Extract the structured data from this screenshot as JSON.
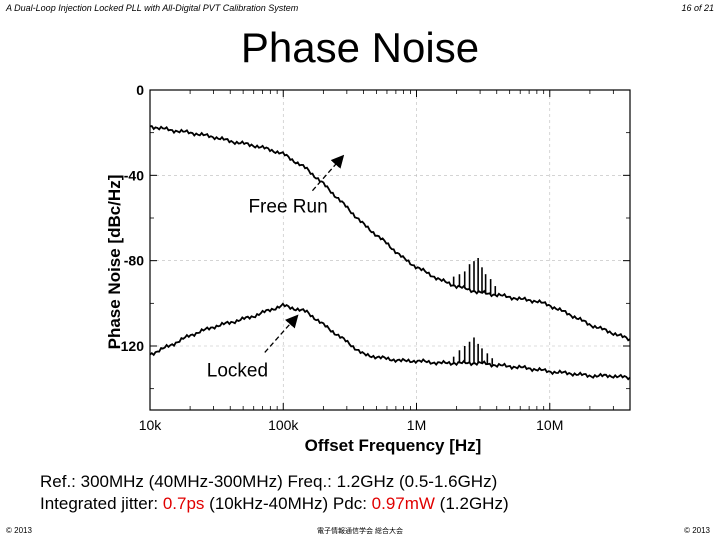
{
  "header": {
    "presentation_title": "A Dual-Loop Injection Locked PLL with All-Digital PVT Calibration System",
    "page_indicator": "16 of 21"
  },
  "slide_title": "Phase Noise",
  "chart_data": {
    "type": "line",
    "xlabel": "Offset Frequency [Hz]",
    "ylabel": "Phase Noise [dBc/Hz]",
    "x_scale": "log",
    "xlim": [
      10000,
      40000000
    ],
    "ylim": [
      -150,
      0
    ],
    "x_ticks": [
      {
        "value": 10000,
        "label": "10k"
      },
      {
        "value": 100000,
        "label": "100k"
      },
      {
        "value": 1000000,
        "label": "1M"
      },
      {
        "value": 10000000,
        "label": "10M"
      }
    ],
    "y_ticks": [
      {
        "value": 0,
        "label": "0"
      },
      {
        "value": -40,
        "label": "-40"
      },
      {
        "value": -80,
        "label": "-80"
      },
      {
        "value": -120,
        "label": "-120"
      }
    ],
    "series": [
      {
        "name": "Free Run",
        "x": [
          10000,
          15000,
          20000,
          30000,
          40000,
          60000,
          80000,
          100000,
          150000,
          200000,
          300000,
          400000,
          600000,
          800000,
          1000000,
          1500000,
          2000000,
          3000000,
          4000000,
          6000000,
          8000000,
          10000000,
          15000000,
          20000000,
          30000000,
          40000000
        ],
        "y": [
          -17,
          -19,
          -20,
          -22,
          -24,
          -26,
          -28,
          -30,
          -37,
          -44,
          -55,
          -63,
          -72,
          -79,
          -83,
          -89,
          -92,
          -95,
          -96,
          -98,
          -99,
          -101,
          -106,
          -110,
          -114,
          -117
        ]
      },
      {
        "name": "Locked",
        "x": [
          10000,
          15000,
          20000,
          30000,
          40000,
          60000,
          80000,
          100000,
          150000,
          200000,
          300000,
          400000,
          600000,
          800000,
          1000000,
          1500000,
          2000000,
          3000000,
          4000000,
          6000000,
          8000000,
          10000000,
          15000000,
          20000000,
          30000000,
          40000000
        ],
        "y": [
          -124,
          -119,
          -115,
          -111,
          -109,
          -106,
          -103,
          -101,
          -104,
          -110,
          -118,
          -124,
          -126,
          -127,
          -127,
          -128,
          -128,
          -128,
          -129,
          -130,
          -131,
          -132,
          -133,
          -134,
          -134,
          -135
        ]
      }
    ],
    "spurs": [
      {
        "series": "Free Run",
        "x": [
          1900000,
          2100000,
          2300000,
          2500000,
          2700000,
          2900000,
          3100000,
          3300000,
          3600000,
          3900000
        ],
        "depth": [
          4,
          6,
          8,
          12,
          14,
          16,
          12,
          9,
          7,
          4
        ]
      },
      {
        "series": "Locked",
        "x": [
          1900000,
          2100000,
          2300000,
          2500000,
          2700000,
          2900000,
          3100000,
          3400000,
          3700000
        ],
        "depth": [
          3,
          6,
          8,
          10,
          12,
          9,
          7,
          5,
          3
        ]
      }
    ],
    "annotations": [
      {
        "label": "Free Run",
        "x": 130000,
        "y": -50
      },
      {
        "label": "Locked",
        "x": 110000,
        "y": -108
      }
    ]
  },
  "captions": {
    "line1": "Ref.: 300MHz (40MHz-300MHz)   Freq.: 1.2GHz (0.5-1.6GHz)",
    "line2_prefix": "Integrated jitter: ",
    "jitter_value": "0.7ps",
    "line2_middle": " (10kHz-40MHz) Pdc: ",
    "power_value": "0.97m",
    "line2_unit": "W",
    "line2_suffix": " (1.2GHz)"
  },
  "footer": {
    "left": "© 2013",
    "center": "電子情報通信学会 総合大会",
    "right": "© 2013"
  },
  "colors": {
    "highlight": "#e00000",
    "axis": "#000000",
    "grid": "#bbbbbb"
  }
}
